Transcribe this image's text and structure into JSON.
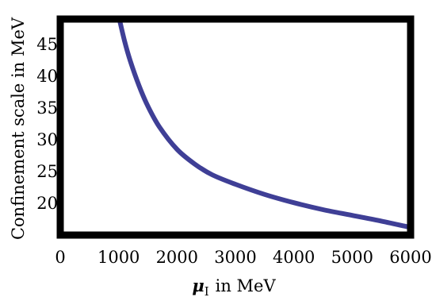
{
  "chart_data": {
    "type": "line",
    "title": "",
    "xlabel_symbol": "μ",
    "xlabel_subscript": "I",
    "xlabel_text": "in MeV",
    "ylabel": "Confinement scale in MeV",
    "xlim": [
      0,
      6000
    ],
    "ylim": [
      15,
      49
    ],
    "grid": false,
    "legend": "none",
    "x_ticks": [
      0,
      1000,
      2000,
      3000,
      4000,
      5000,
      6000
    ],
    "y_ticks": [
      20,
      25,
      30,
      35,
      40,
      45
    ],
    "series": [
      {
        "color": "#3f3f96",
        "x": [
          1000,
          1100,
          1200,
          1350,
          1500,
          1700,
          2000,
          2300,
          2600,
          3000,
          3500,
          4000,
          4500,
          5000,
          5500,
          6000
        ],
        "y": [
          49.5,
          45.6,
          42.4,
          38.5,
          35.3,
          32.0,
          28.5,
          26.2,
          24.5,
          23.0,
          21.4,
          20.1,
          19.0,
          18.1,
          17.2,
          16.2
        ]
      }
    ]
  }
}
